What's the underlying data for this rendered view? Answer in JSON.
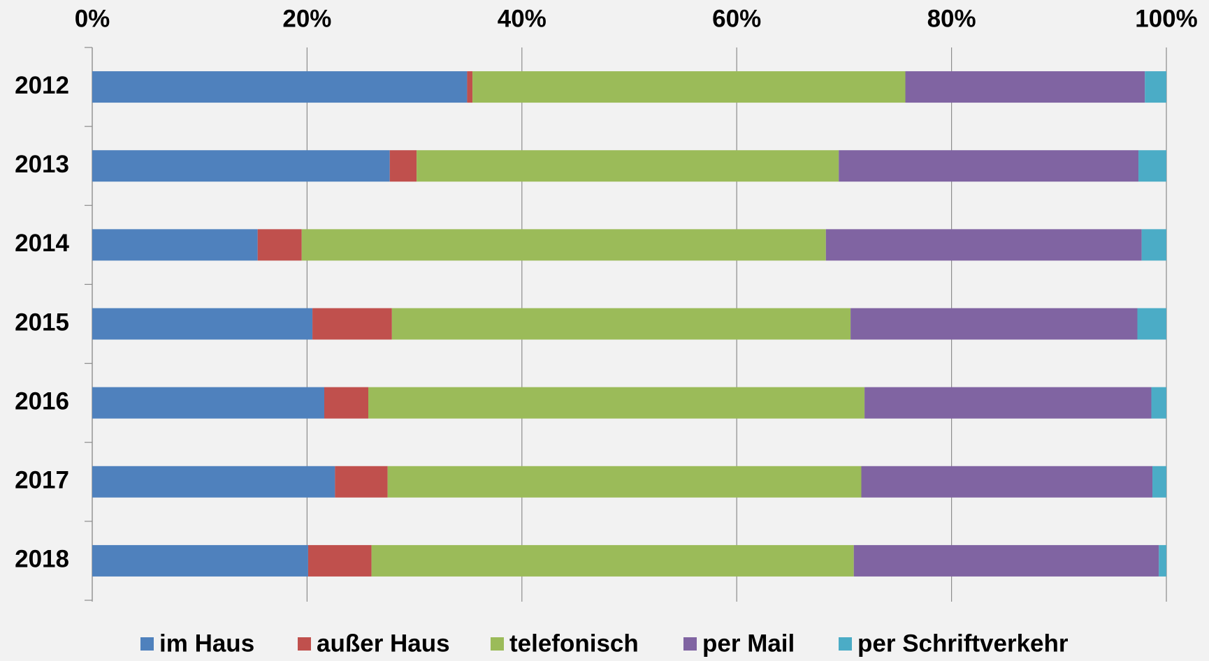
{
  "chart_data": {
    "type": "stacked-bar-horizontal",
    "categories": [
      "2012",
      "2013",
      "2014",
      "2015",
      "2016",
      "2017",
      "2018"
    ],
    "series": [
      {
        "name": "im Haus",
        "color": "#4f81bd",
        "values": [
          34.9,
          27.7,
          15.4,
          20.5,
          21.6,
          22.6,
          20.1
        ]
      },
      {
        "name": "außer Haus",
        "color": "#c0504d",
        "values": [
          0.5,
          2.5,
          4.1,
          7.4,
          4.1,
          4.9,
          5.9
        ]
      },
      {
        "name": "telefonisch",
        "color": "#9bbb59",
        "values": [
          40.3,
          39.3,
          48.8,
          42.7,
          46.2,
          44.1,
          44.9
        ]
      },
      {
        "name": "per Mail",
        "color": "#8064a2",
        "values": [
          22.3,
          27.9,
          29.4,
          26.7,
          26.7,
          27.1,
          28.4
        ]
      },
      {
        "name": "per Schriftverkehr",
        "color": "#4bacc6",
        "values": [
          2.0,
          2.6,
          2.3,
          2.7,
          1.4,
          1.3,
          0.7
        ]
      }
    ],
    "xlim": [
      0,
      100
    ],
    "xticks": [
      {
        "value": 0,
        "label": "0%"
      },
      {
        "value": 20,
        "label": "20%"
      },
      {
        "value": 40,
        "label": "40%"
      },
      {
        "value": 60,
        "label": "60%"
      },
      {
        "value": 80,
        "label": "80%"
      },
      {
        "value": 100,
        "label": "100%"
      }
    ],
    "grid": true,
    "legend": "bottom"
  }
}
